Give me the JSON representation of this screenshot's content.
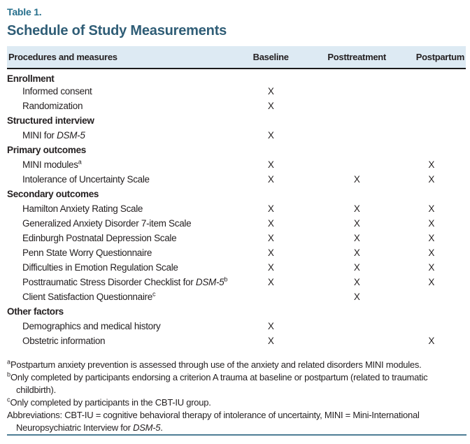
{
  "table_label": "Table 1.",
  "title": "Schedule of Study Measurements",
  "columns": [
    "Procedures and measures",
    "Baseline",
    "Posttreatment",
    "Postpartum"
  ],
  "rows": [
    {
      "type": "section",
      "label": "Enrollment",
      "values": [
        "",
        "",
        ""
      ]
    },
    {
      "type": "item",
      "label": "Informed consent",
      "values": [
        "X",
        "",
        ""
      ]
    },
    {
      "type": "item",
      "label": "Randomization",
      "values": [
        "X",
        "",
        ""
      ]
    },
    {
      "type": "section",
      "label": "Structured interview",
      "values": [
        "",
        "",
        ""
      ]
    },
    {
      "type": "item",
      "label": "MINI for *DSM-5*",
      "values": [
        "X",
        "",
        ""
      ]
    },
    {
      "type": "section",
      "label": "Primary outcomes",
      "values": [
        "",
        "",
        ""
      ]
    },
    {
      "type": "item",
      "label": "MINI modules^a",
      "values": [
        "X",
        "",
        "X"
      ]
    },
    {
      "type": "item",
      "label": "Intolerance of Uncertainty Scale",
      "values": [
        "X",
        "X",
        "X"
      ]
    },
    {
      "type": "section",
      "label": "Secondary outcomes",
      "values": [
        "",
        "",
        ""
      ]
    },
    {
      "type": "item",
      "label": "Hamilton Anxiety Rating Scale",
      "values": [
        "X",
        "X",
        "X"
      ]
    },
    {
      "type": "item",
      "label": "Generalized Anxiety Disorder 7-item Scale",
      "values": [
        "X",
        "X",
        "X"
      ]
    },
    {
      "type": "item",
      "label": "Edinburgh Postnatal Depression Scale",
      "values": [
        "X",
        "X",
        "X"
      ]
    },
    {
      "type": "item",
      "label": "Penn State Worry Questionnaire",
      "values": [
        "X",
        "X",
        "X"
      ]
    },
    {
      "type": "item",
      "label": "Difficulties in Emotion Regulation Scale",
      "values": [
        "X",
        "X",
        "X"
      ]
    },
    {
      "type": "item",
      "label": "Posttraumatic Stress Disorder Checklist for *DSM-5*^b",
      "values": [
        "X",
        "X",
        "X"
      ]
    },
    {
      "type": "item",
      "label": "Client Satisfaction Questionnaire^c",
      "values": [
        "",
        "X",
        ""
      ]
    },
    {
      "type": "section",
      "label": "Other factors",
      "values": [
        "",
        "",
        ""
      ]
    },
    {
      "type": "item",
      "label": "Demographics and medical history",
      "values": [
        "X",
        "",
        ""
      ]
    },
    {
      "type": "item",
      "label": "Obstetric information",
      "values": [
        "X",
        "",
        "X"
      ]
    }
  ],
  "footnotes": [
    "^aPostpartum anxiety prevention is assessed through use of the anxiety and related disorders MINI modules.",
    "^bOnly completed by participants endorsing a criterion A trauma at baseline or postpartum (related to traumatic childbirth).",
    "^cOnly completed by participants in the CBT-IU group.",
    "Abbreviations: CBT-IU = cognitive behavioral therapy of intolerance of uncertainty, MINI = Mini-International Neuropsychiatric Interview for *DSM-5*."
  ],
  "colors": {
    "accent": "#266f8c",
    "title_text": "#2f5d76",
    "header_bg": "#ddeaf3",
    "header_rule": "#1a1a1a",
    "body_text": "#231f20",
    "bottom_rule": "#4e7d95"
  }
}
